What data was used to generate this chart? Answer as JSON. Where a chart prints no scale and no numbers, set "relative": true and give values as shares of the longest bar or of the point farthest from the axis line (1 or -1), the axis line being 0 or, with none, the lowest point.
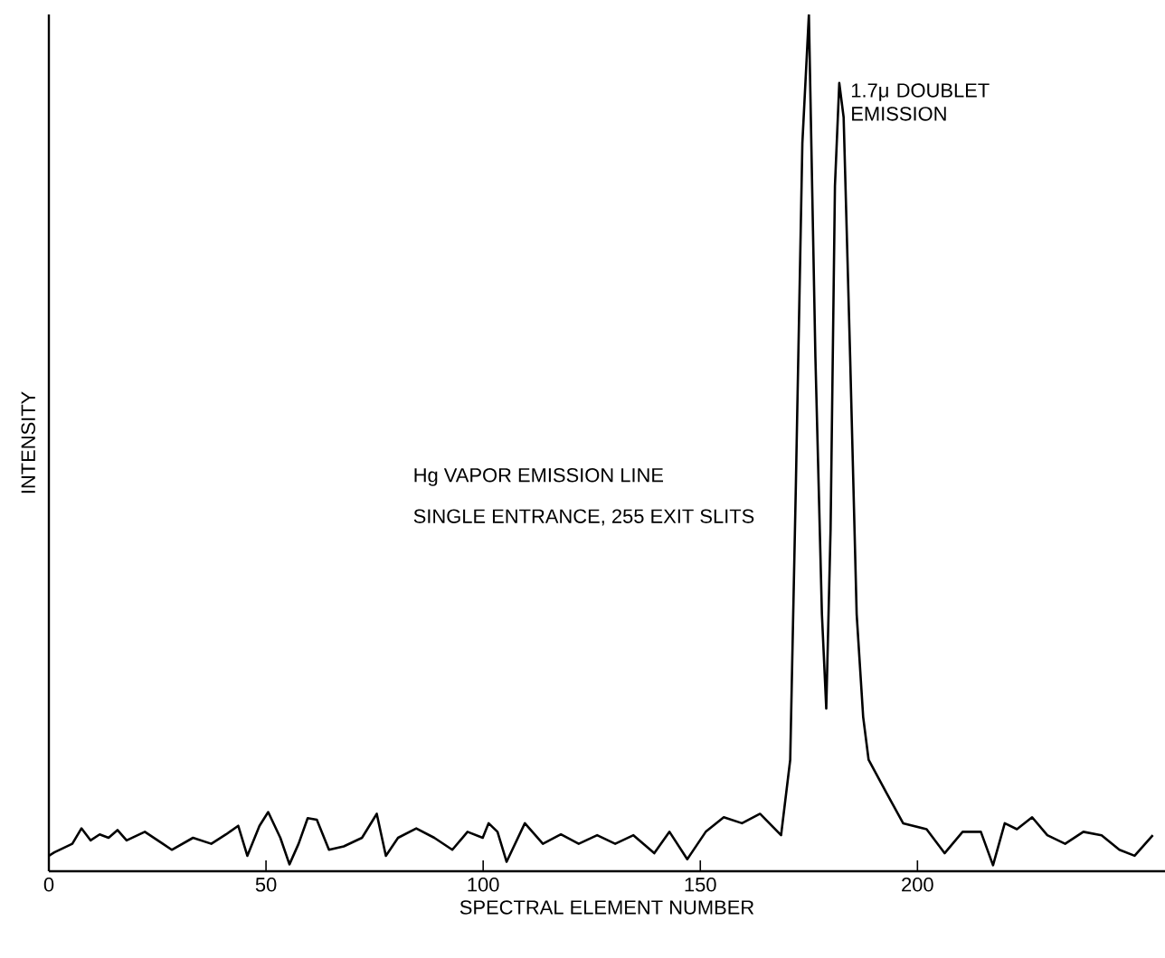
{
  "chart_data": {
    "type": "line",
    "relative": true,
    "xlabel": "SPECTRAL ELEMENT NUMBER",
    "ylabel": "INTENSITY",
    "xlim": [
      0,
      257
    ],
    "xticks": [
      0,
      50,
      100,
      150,
      200
    ],
    "grid": false,
    "marker": "none",
    "line_style": "solid",
    "annotations": [
      "Hg VAPOR EMISSION LINE",
      "SINGLE ENTRANCE, 255 EXIT SLITS",
      {
        "text": "1.7μ DOUBLET EMISSION",
        "x": 182,
        "y": 0.92
      }
    ],
    "series": [
      {
        "color": "#000000",
        "x": [
          0,
          1.25,
          5.4,
          7.5,
          9.6,
          11.7,
          13.75,
          15.8,
          17.9,
          22.1,
          26.25,
          28.3,
          33.2,
          37.4,
          40.8,
          43.6,
          45.7,
          48.5,
          50.5,
          53.3,
          55.4,
          57.5,
          59.6,
          61.7,
          64.5,
          67.9,
          72.1,
          75.5,
          77.6,
          80.4,
          84.6,
          88.75,
          92.9,
          96.4,
          99.9,
          101.25,
          103.3,
          105.4,
          109.6,
          113.75,
          117.9,
          122,
          126.25,
          130.4,
          134.6,
          139.4,
          142.9,
          147,
          151.25,
          155.4,
          159.6,
          163.75,
          168.6,
          170.7,
          172,
          173.5,
          175,
          176.5,
          178,
          179,
          180,
          181,
          182,
          183,
          184.5,
          186,
          187.5,
          188.75,
          192.9,
          196.7,
          202.1,
          206.25,
          210.4,
          214.6,
          217.4,
          220.1,
          222.9,
          226.4,
          229.9,
          234,
          238.2,
          242.4,
          246.5,
          250,
          254.2
        ],
        "values": [
          0.018,
          0.022,
          0.032,
          0.05,
          0.036,
          0.043,
          0.039,
          0.048,
          0.036,
          0.046,
          0.032,
          0.025,
          0.039,
          0.032,
          0.043,
          0.053,
          0.018,
          0.053,
          0.069,
          0.039,
          0.008,
          0.032,
          0.062,
          0.06,
          0.025,
          0.029,
          0.039,
          0.067,
          0.018,
          0.039,
          0.05,
          0.039,
          0.025,
          0.046,
          0.039,
          0.056,
          0.046,
          0.011,
          0.056,
          0.032,
          0.043,
          0.032,
          0.042,
          0.032,
          0.042,
          0.021,
          0.046,
          0.014,
          0.046,
          0.063,
          0.056,
          0.067,
          0.042,
          0.13,
          0.45,
          0.85,
          1.0,
          0.6,
          0.3,
          0.19,
          0.4,
          0.8,
          0.92,
          0.88,
          0.6,
          0.3,
          0.18,
          0.13,
          0.091,
          0.056,
          0.049,
          0.021,
          0.046,
          0.046,
          0.007,
          0.056,
          0.049,
          0.063,
          0.042,
          0.032,
          0.046,
          0.042,
          0.025,
          0.018,
          0.042
        ]
      }
    ]
  }
}
